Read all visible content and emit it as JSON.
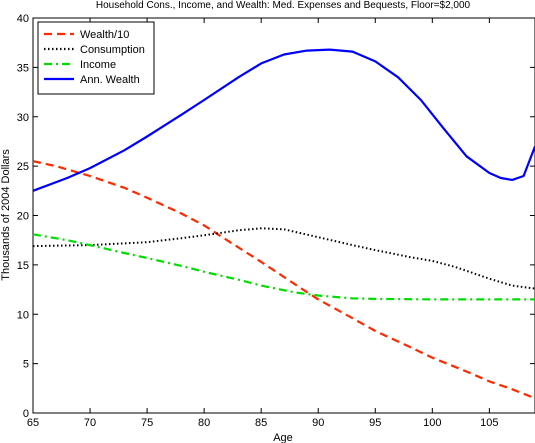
{
  "chart_data": {
    "type": "line",
    "title": "Household Cons., Income, and Wealth: Med. Expenses and Bequests, Floor=$2,000",
    "xlabel": "Age",
    "ylabel": "Thousands of 2004 Dollars",
    "xlim": [
      65,
      109
    ],
    "ylim": [
      0,
      40
    ],
    "xticks": [
      65,
      70,
      75,
      80,
      85,
      90,
      95,
      100,
      105
    ],
    "yticks": [
      0,
      5,
      10,
      15,
      20,
      25,
      30,
      35,
      40
    ],
    "grid": false,
    "legend_position": "top-left",
    "series": [
      {
        "name": "Wealth/10",
        "color": "#ff2a00",
        "style": "dashed",
        "x": [
          65,
          67,
          70,
          73,
          75,
          78,
          80,
          82,
          85,
          88,
          90,
          93,
          95,
          98,
          100,
          103,
          105,
          107,
          109
        ],
        "y": [
          25.5,
          25.0,
          24.0,
          22.8,
          21.8,
          20.2,
          19.0,
          17.5,
          15.3,
          13.0,
          11.5,
          9.6,
          8.3,
          6.7,
          5.6,
          4.2,
          3.2,
          2.4,
          1.5
        ]
      },
      {
        "name": "Consumption",
        "color": "#000000",
        "style": "dotted",
        "x": [
          65,
          70,
          75,
          78,
          80,
          83,
          85,
          87,
          90,
          93,
          95,
          98,
          100,
          102,
          105,
          107,
          109
        ],
        "y": [
          16.9,
          17.0,
          17.3,
          17.7,
          18.0,
          18.5,
          18.7,
          18.6,
          17.8,
          17.0,
          16.5,
          15.8,
          15.4,
          14.8,
          13.6,
          12.9,
          12.6
        ]
      },
      {
        "name": "Income",
        "color": "#00dd00",
        "style": "dashdot",
        "x": [
          65,
          68,
          70,
          73,
          75,
          78,
          80,
          83,
          85,
          88,
          90,
          93,
          95,
          100,
          105,
          109
        ],
        "y": [
          18.1,
          17.5,
          17.0,
          16.2,
          15.7,
          14.9,
          14.3,
          13.5,
          12.9,
          12.2,
          11.9,
          11.6,
          11.55,
          11.5,
          11.5,
          11.5
        ]
      },
      {
        "name": "Ann. Wealth",
        "color": "#0000ff",
        "style": "solid",
        "x": [
          65,
          68,
          70,
          73,
          75,
          78,
          80,
          83,
          85,
          87,
          89,
          91,
          93,
          95,
          97,
          99,
          101,
          103,
          105,
          106,
          107,
          108,
          109
        ],
        "y": [
          22.5,
          23.8,
          24.8,
          26.6,
          28.0,
          30.2,
          31.7,
          34.0,
          35.4,
          36.3,
          36.7,
          36.8,
          36.6,
          35.6,
          34.0,
          31.7,
          28.8,
          26.0,
          24.3,
          23.8,
          23.6,
          24.0,
          27.0
        ]
      }
    ]
  }
}
